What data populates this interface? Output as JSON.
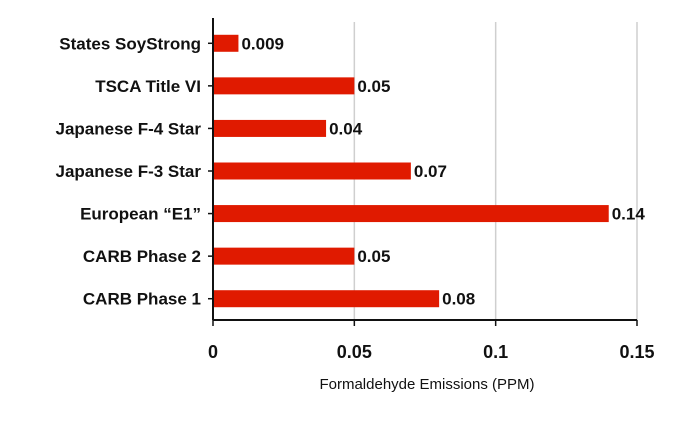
{
  "chart_data": {
    "type": "bar",
    "orientation": "horizontal",
    "categories": [
      "States SoyStrong",
      "TSCA Title VI",
      "Japanese F-4 Star",
      "Japanese F-3 Star",
      "European “E1”",
      "CARB Phase 2",
      "CARB Phase 1"
    ],
    "values": [
      0.009,
      0.05,
      0.04,
      0.07,
      0.14,
      0.05,
      0.08
    ],
    "value_labels": [
      "0.009",
      "0.05",
      "0.04",
      "0.07",
      "0.14",
      "0.05",
      "0.08"
    ],
    "xlabel": "Formaldehyde Emissions (PPM)",
    "xlim": [
      0,
      0.15
    ],
    "xticks": [
      0,
      0.05,
      0.1,
      0.15
    ],
    "xtick_labels": [
      "0",
      "0.05",
      "0.1",
      "0.15"
    ],
    "bar_color": "#e01a00",
    "grid": "vertical",
    "legend": "none"
  }
}
